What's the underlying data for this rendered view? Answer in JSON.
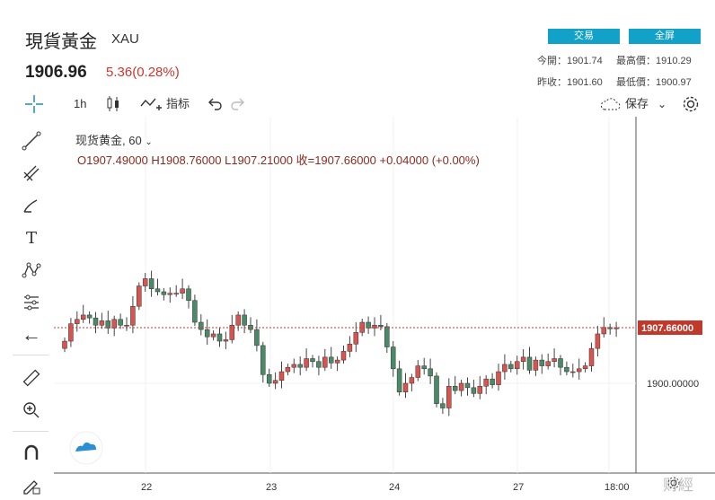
{
  "header": {
    "title": "現貨黃金",
    "symbol": "XAU",
    "price": "1906.96",
    "change": "5.36(0.28%)",
    "trade_button": "交易",
    "fullscreen_button": "全屏",
    "stats": [
      {
        "label": "今開：",
        "value": "1901.74"
      },
      {
        "label": "最高價：",
        "value": "1910.29"
      },
      {
        "label": "昨收：",
        "value": "1901.60"
      },
      {
        "label": "最低價：",
        "value": "1900.97"
      }
    ]
  },
  "toolbar": {
    "interval": "1h",
    "indicators_label": "指标",
    "save_label": "保存"
  },
  "legend": {
    "series_name": "现货黄金, 60",
    "ohlc": "O1907.49000  H1908.76000  L1907.21000  收=1907.66000  +0.04000  (+0.00%)"
  },
  "chart_data": {
    "type": "candlestick",
    "x_ticks": [
      "22",
      "23",
      "24",
      "27",
      "18:00"
    ],
    "y_ticks": [
      1900
    ],
    "y_tick_labels": [
      "1900.00000"
    ],
    "current_price_label": "1907.66000",
    "current_price": 1907.66,
    "colors": {
      "up": "#d9534f",
      "down": "#4a8a68",
      "price_line": "#c0392b"
    }
  },
  "watermark": "财經"
}
